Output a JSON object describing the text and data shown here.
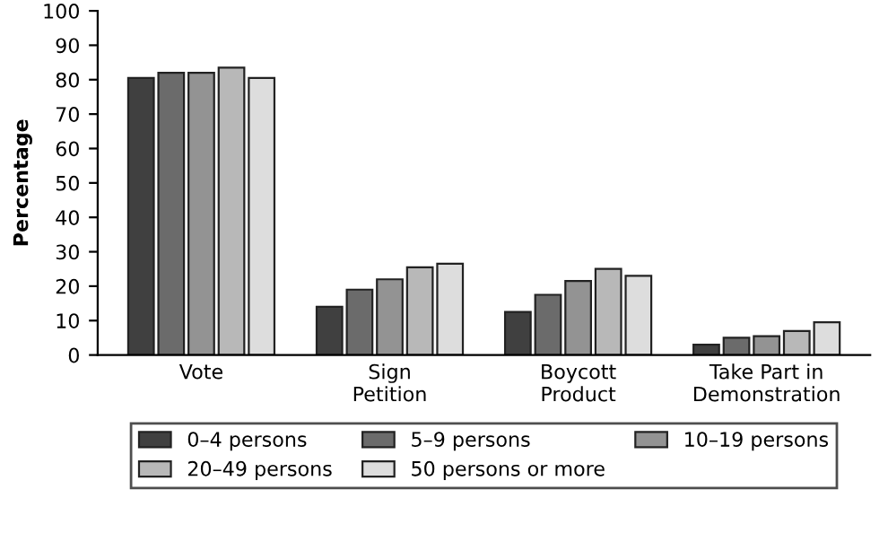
{
  "chart_data": {
    "type": "bar",
    "ylabel": "Percentage",
    "categories": [
      "Vote",
      "Sign\nPetition",
      "Boycott\nProduct",
      "Take Part in\nDemonstration"
    ],
    "series": [
      {
        "name": "0–4 persons",
        "color": "#404040",
        "values": [
          80.5,
          14,
          12.5,
          3
        ]
      },
      {
        "name": "5–9 persons",
        "color": "#6b6b6b",
        "values": [
          82,
          19,
          17.5,
          5
        ]
      },
      {
        "name": "10–19 persons",
        "color": "#939393",
        "values": [
          82,
          22,
          21.5,
          5.5
        ]
      },
      {
        "name": "20–49 persons",
        "color": "#b8b8b8",
        "values": [
          83.5,
          25.5,
          25,
          7
        ]
      },
      {
        "name": "50 persons or more",
        "color": "#dddddd",
        "values": [
          80.5,
          26.5,
          23,
          9.5
        ]
      }
    ],
    "ylim": [
      0,
      100
    ],
    "yticks": [
      0,
      10,
      20,
      30,
      40,
      50,
      60,
      70,
      80,
      90,
      100
    ],
    "grid": false,
    "legend": "bottom"
  }
}
